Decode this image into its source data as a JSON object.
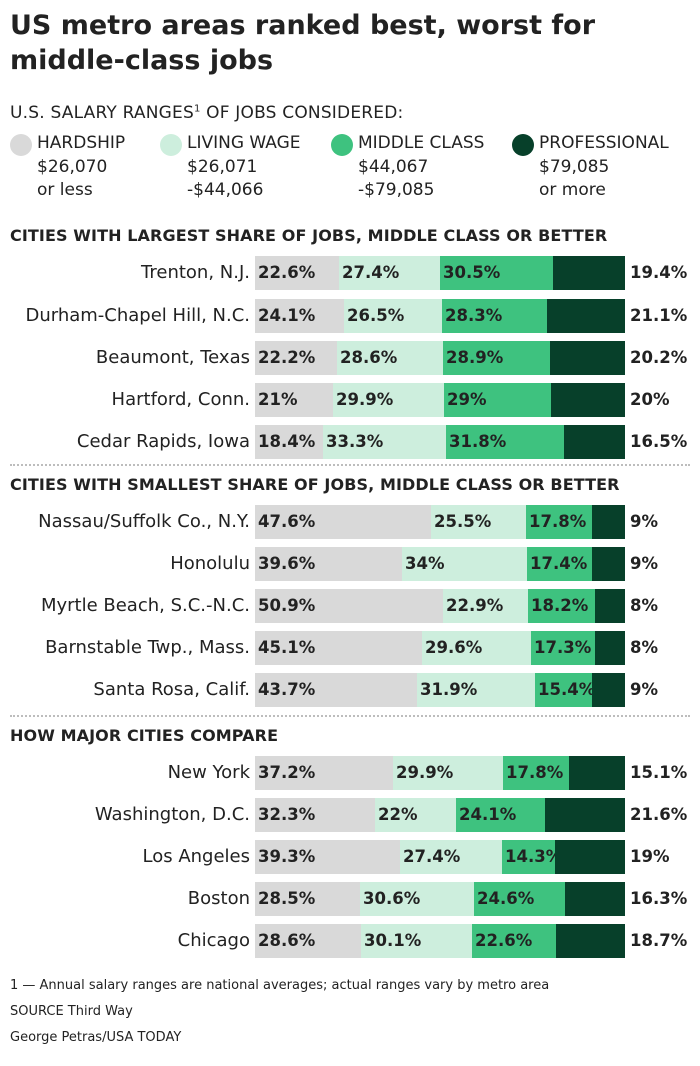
{
  "title": "US metro areas ranked best, worst for middle-class jobs",
  "legend": {
    "heading": "U.S. SALARY RANGES",
    "footnote_mark": "1",
    "heading_suffix": " OF JOBS CONSIDERED:",
    "items": [
      {
        "name": "HARDSHIP",
        "line1": "$26,070",
        "line2": "or less",
        "color": "#d9d9d9"
      },
      {
        "name": "LIVING WAGE",
        "line1": "$26,071",
        "line2": "-$44,066",
        "color": "#cdeedd"
      },
      {
        "name": "MIDDLE CLASS",
        "line1": "$44,067",
        "line2": "-$79,085",
        "color": "#3ec27f"
      },
      {
        "name": "PROFESSIONAL",
        "line1": "$79,085",
        "line2": "or more",
        "color": "#07402a"
      }
    ]
  },
  "chart_data": [
    {
      "type": "bar",
      "stacked": true,
      "orientation": "horizontal",
      "title": "CITIES WITH LARGEST SHARE OF JOBS, MIDDLE CLASS OR BETTER",
      "series_names": [
        "HARDSHIP",
        "LIVING WAGE",
        "MIDDLE CLASS",
        "PROFESSIONAL"
      ],
      "rows": [
        {
          "city": "Trenton, N.J.",
          "values": [
            22.6,
            27.4,
            30.5,
            19.4
          ],
          "labels": [
            "22.6%",
            "27.4%",
            "30.5%",
            "19.4%"
          ]
        },
        {
          "city": "Durham-Chapel Hill, N.C.",
          "values": [
            24.1,
            26.5,
            28.3,
            21.1
          ],
          "labels": [
            "24.1%",
            "26.5%",
            "28.3%",
            "21.1%"
          ]
        },
        {
          "city": "Beaumont, Texas",
          "values": [
            22.2,
            28.6,
            28.9,
            20.2
          ],
          "labels": [
            "22.2%",
            "28.6%",
            "28.9%",
            "20.2%"
          ]
        },
        {
          "city": "Hartford, Conn.",
          "values": [
            21,
            29.9,
            29,
            20
          ],
          "labels": [
            "21%",
            "29.9%",
            "29%",
            "20%"
          ]
        },
        {
          "city": "Cedar Rapids, Iowa",
          "values": [
            18.4,
            33.3,
            31.8,
            16.5
          ],
          "labels": [
            "18.4%",
            "33.3%",
            "31.8%",
            "16.5%"
          ]
        }
      ]
    },
    {
      "type": "bar",
      "stacked": true,
      "orientation": "horizontal",
      "title": "CITIES WITH SMALLEST SHARE OF JOBS, MIDDLE CLASS OR BETTER",
      "series_names": [
        "HARDSHIP",
        "LIVING WAGE",
        "MIDDLE CLASS",
        "PROFESSIONAL"
      ],
      "rows": [
        {
          "city": "Nassau/Suffolk Co., N.Y.",
          "values": [
            47.6,
            25.5,
            17.8,
            9
          ],
          "labels": [
            "47.6%",
            "25.5%",
            "17.8%",
            "9%"
          ]
        },
        {
          "city": "Honolulu",
          "values": [
            39.6,
            34,
            17.4,
            9
          ],
          "labels": [
            "39.6%",
            "34%",
            "17.4%",
            "9%"
          ]
        },
        {
          "city": "Myrtle Beach, S.C.-N.C.",
          "values": [
            50.9,
            22.9,
            18.2,
            8
          ],
          "labels": [
            "50.9%",
            "22.9%",
            "18.2%",
            "8%"
          ]
        },
        {
          "city": "Barnstable Twp., Mass.",
          "values": [
            45.1,
            29.6,
            17.3,
            8
          ],
          "labels": [
            "45.1%",
            "29.6%",
            "17.3%",
            "8%"
          ]
        },
        {
          "city": "Santa Rosa, Calif.",
          "values": [
            43.7,
            31.9,
            15.4,
            9
          ],
          "labels": [
            "43.7%",
            "31.9%",
            "15.4%",
            "9%"
          ]
        }
      ]
    },
    {
      "type": "bar",
      "stacked": true,
      "orientation": "horizontal",
      "title": "HOW MAJOR CITIES COMPARE",
      "series_names": [
        "HARDSHIP",
        "LIVING WAGE",
        "MIDDLE CLASS",
        "PROFESSIONAL"
      ],
      "rows": [
        {
          "city": "New York",
          "values": [
            37.2,
            29.9,
            17.8,
            15.1
          ],
          "labels": [
            "37.2%",
            "29.9%",
            "17.8%",
            "15.1%"
          ]
        },
        {
          "city": "Washington, D.C.",
          "values": [
            32.3,
            22,
            24.1,
            21.6
          ],
          "labels": [
            "32.3%",
            "22%",
            "24.1%",
            "21.6%"
          ]
        },
        {
          "city": "Los Angeles",
          "values": [
            39.3,
            27.4,
            14.3,
            19
          ],
          "labels": [
            "39.3%",
            "27.4%",
            "14.3%",
            "19%"
          ]
        },
        {
          "city": "Boston",
          "values": [
            28.5,
            30.6,
            24.6,
            16.3
          ],
          "labels": [
            "28.5%",
            "30.6%",
            "24.6%",
            "16.3%"
          ]
        },
        {
          "city": "Chicago",
          "values": [
            28.6,
            30.1,
            22.6,
            18.7
          ],
          "labels": [
            "28.6%",
            "30.1%",
            "22.6%",
            "18.7%"
          ]
        }
      ]
    }
  ],
  "notes": {
    "footnote": "1 — Annual salary ranges are national averages; actual ranges vary by metro area",
    "source": "SOURCE Third Way",
    "credit": "George Petras/USA TODAY"
  }
}
